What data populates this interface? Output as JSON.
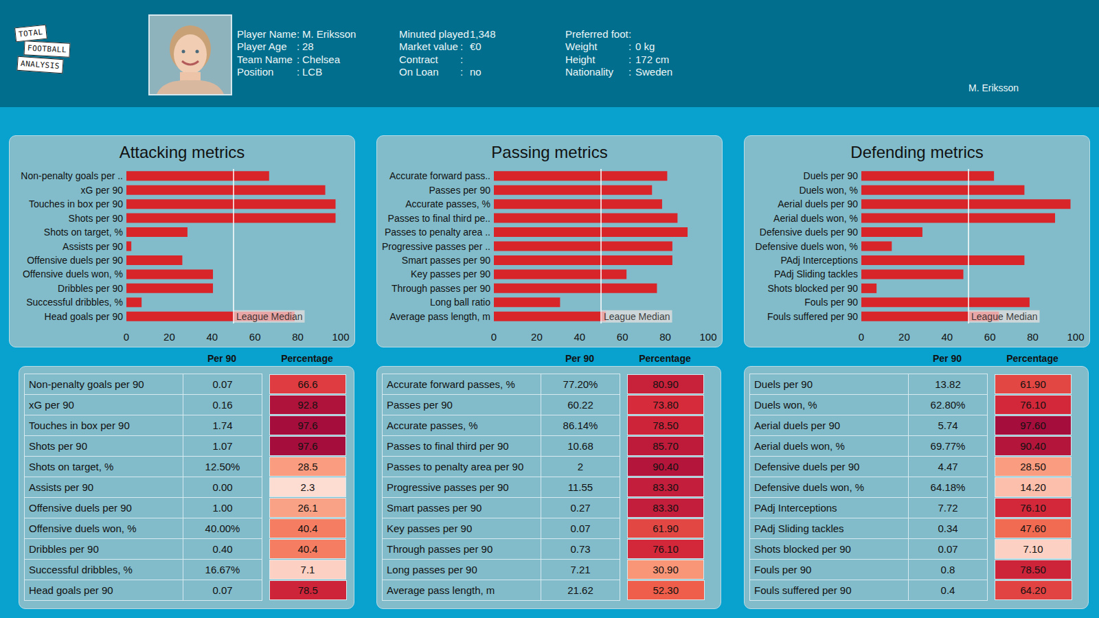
{
  "header": {
    "logo": [
      "TOTAL",
      "FOOTBALL",
      "ANALYSIS"
    ],
    "separator": ":",
    "columns": [
      [
        {
          "label": "Player Name",
          "value": "M. Eriksson"
        },
        {
          "label": "Player Age",
          "value": "28"
        },
        {
          "label": "Team Name",
          "value": "Chelsea"
        },
        {
          "label": "Position",
          "value": "LCB"
        }
      ],
      [
        {
          "label": "Minuted played",
          "value": "1,348"
        },
        {
          "label": "Market value",
          "value": "€0"
        },
        {
          "label": "Contract"
        },
        {
          "label": "On Loan",
          "value": "no"
        }
      ],
      [
        {
          "label": "Preferred foot"
        },
        {
          "label": "Weight",
          "value": "0 kg"
        },
        {
          "label": "Height",
          "value": "172 cm"
        },
        {
          "label": "Nationality",
          "value": "Sweden"
        }
      ]
    ],
    "player_label": "M. Eriksson"
  },
  "chart_data": [
    {
      "type": "bar",
      "orientation": "horizontal",
      "title": "Attacking metrics",
      "categories": [
        "Non-penalty goals per ..",
        "xG per 90",
        "Touches in box per 90",
        "Shots per 90",
        "Shots on target, %",
        "Assists per 90",
        "Offensive duels per 90",
        "Offensive duels won, %",
        "Dribbles per 90",
        "Successful dribbles, %",
        "Head goals per 90"
      ],
      "values": [
        66.6,
        92.8,
        97.6,
        97.6,
        28.5,
        2.3,
        26.1,
        40.4,
        40.4,
        7.1,
        78.5
      ],
      "color": "#d7252a",
      "xlim": [
        0,
        100
      ],
      "xticks": [
        0,
        20,
        40,
        60,
        80,
        100
      ],
      "grid": false,
      "annotations": [
        {
          "text": "League Median",
          "x": 50
        }
      ]
    },
    {
      "type": "bar",
      "orientation": "horizontal",
      "title": "Passing metrics",
      "categories": [
        "Accurate forward pass..",
        "Passes per 90",
        "Accurate passes, %",
        "Passes to final third pe..",
        "Passes to penalty area ..",
        "Progressive passes per ..",
        "Smart passes per 90",
        "Key passes per 90",
        "Through passes per 90",
        "Long ball ratio",
        "Average pass length, m"
      ],
      "values": [
        80.9,
        73.8,
        78.5,
        85.7,
        90.4,
        83.3,
        83.3,
        61.9,
        76.1,
        30.9,
        52.3
      ],
      "color": "#d7252a",
      "xlim": [
        0,
        100
      ],
      "xticks": [
        0,
        20,
        40,
        60,
        80,
        100
      ],
      "grid": false,
      "annotations": [
        {
          "text": "League Median",
          "x": 50
        }
      ]
    },
    {
      "type": "bar",
      "orientation": "horizontal",
      "title": "Defending metrics",
      "categories": [
        "Duels per 90",
        "Duels won, %",
        "Aerial duels per 90",
        "Aerial duels won, %",
        "Defensive duels per 90",
        "Defensive duels won, %",
        "PAdj Interceptions",
        "PAdj Sliding tackles",
        "Shots blocked per 90",
        "Fouls per 90",
        "Fouls suffered per 90"
      ],
      "values": [
        61.9,
        76.1,
        97.6,
        90.4,
        28.5,
        14.2,
        76.1,
        47.6,
        7.1,
        78.5,
        64.2
      ],
      "color": "#d7252a",
      "xlim": [
        0,
        100
      ],
      "xticks": [
        0,
        20,
        40,
        60,
        80,
        100
      ],
      "grid": false,
      "annotations": [
        {
          "text": "League Median",
          "x": 50
        }
      ]
    }
  ],
  "tables": [
    {
      "columns": [
        "Per 90",
        "Percentage"
      ],
      "rows": [
        [
          "Non-penalty goals per 90",
          "0.07",
          "66.6"
        ],
        [
          "xG per 90",
          "0.16",
          "92.8"
        ],
        [
          "Touches in box per 90",
          "1.74",
          "97.6"
        ],
        [
          "Shots per 90",
          "1.07",
          "97.6"
        ],
        [
          "Shots on target, %",
          "12.50%",
          "28.5"
        ],
        [
          "Assists per 90",
          "0.00",
          "2.3"
        ],
        [
          "Offensive duels per 90",
          "1.00",
          "26.1"
        ],
        [
          "Offensive duels won, %",
          "40.00%",
          "40.4"
        ],
        [
          "Dribbles per 90",
          "0.40",
          "40.4"
        ],
        [
          "Successful dribbles, %",
          "16.67%",
          "7.1"
        ],
        [
          "Head goals per 90",
          "0.07",
          "78.5"
        ]
      ]
    },
    {
      "columns": [
        "Per 90",
        "Percentage"
      ],
      "rows": [
        [
          "Accurate forward passes, %",
          "77.20%",
          "80.90"
        ],
        [
          "Passes per 90",
          "60.22",
          "73.80"
        ],
        [
          "Accurate passes, %",
          "86.14%",
          "78.50"
        ],
        [
          "Passes to final third per 90",
          "10.68",
          "85.70"
        ],
        [
          "Passes to penalty area per 90",
          "2",
          "90.40"
        ],
        [
          "Progressive passes per 90",
          "11.55",
          "83.30"
        ],
        [
          "Smart passes per 90",
          "0.27",
          "83.30"
        ],
        [
          "Key passes per 90",
          "0.07",
          "61.90"
        ],
        [
          "Through passes per 90",
          "0.73",
          "76.10"
        ],
        [
          "Long passes per 90",
          "7.21",
          "30.90"
        ],
        [
          "Average pass length, m",
          "21.62",
          "52.30"
        ]
      ]
    },
    {
      "columns": [
        "Per 90",
        "Percentage"
      ],
      "rows": [
        [
          "Duels per 90",
          "13.82",
          "61.90"
        ],
        [
          "Duels won, %",
          "62.80%",
          "76.10"
        ],
        [
          "Aerial duels per 90",
          "5.74",
          "97.60"
        ],
        [
          "Aerial duels won, %",
          "69.77%",
          "90.40"
        ],
        [
          "Defensive duels per 90",
          "4.47",
          "28.50"
        ],
        [
          "Defensive duels won, %",
          "64.18%",
          "14.20"
        ],
        [
          "PAdj Interceptions",
          "7.72",
          "76.10"
        ],
        [
          "PAdj Sliding tackles",
          "0.34",
          "47.60"
        ],
        [
          "Shots blocked per 90",
          "0.07",
          "7.10"
        ],
        [
          "Fouls per 90",
          "0.8",
          "78.50"
        ],
        [
          "Fouls suffered per 90",
          "0.4",
          "64.20"
        ]
      ]
    }
  ]
}
